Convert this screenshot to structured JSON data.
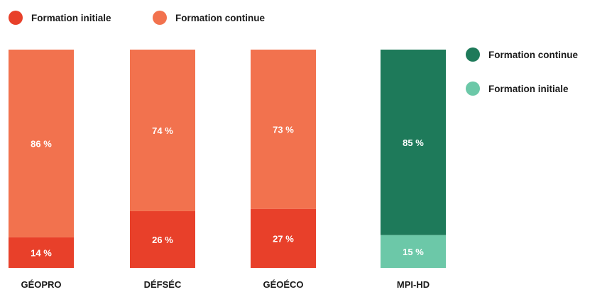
{
  "chart_data": {
    "type": "bar",
    "stacked": true,
    "unit": "%",
    "categories": [
      "GÉOPRO",
      "DÉFSÉC",
      "GÉOÉCO",
      "MPI-HD"
    ],
    "series": [
      {
        "name": "Formation initiale",
        "values": [
          14,
          26,
          27,
          15
        ]
      },
      {
        "name": "Formation continue",
        "values": [
          86,
          74,
          73,
          85
        ]
      }
    ],
    "data_labels": {
      "initiale": [
        "14 %",
        "26 %",
        "27 %",
        "15 %"
      ],
      "continue": [
        "86 %",
        "74 %",
        "73 %",
        "85 %"
      ]
    },
    "ylim": [
      0,
      100
    ],
    "grid": false,
    "legends": [
      {
        "placement": "top-left",
        "entries": [
          {
            "label": "Formation initiale",
            "color": "#e8402a"
          },
          {
            "label": "Formation continue",
            "color": "#f2724e"
          }
        ]
      },
      {
        "placement": "right",
        "entries": [
          {
            "label": "Formation continue",
            "color": "#1e7a5a"
          },
          {
            "label": "Formation initiale",
            "color": "#6cc8a8"
          }
        ]
      }
    ],
    "bar_colors": [
      {
        "initiale": "#e8402a",
        "continue": "#f2724e"
      },
      {
        "initiale": "#e8402a",
        "continue": "#f2724e"
      },
      {
        "initiale": "#e8402a",
        "continue": "#f2724e"
      },
      {
        "initiale": "#6cc8a8",
        "continue": "#1e7a5a"
      }
    ]
  }
}
